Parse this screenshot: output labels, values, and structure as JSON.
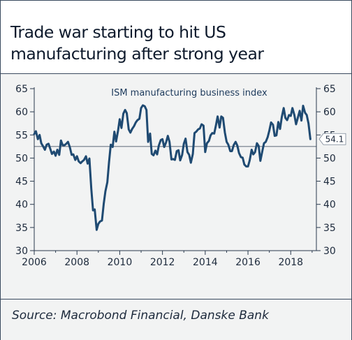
{
  "title": "Trade war starting to hit US manufacturing after strong year",
  "source": "Source: Macrobond Financial, Danske Bank",
  "colors": {
    "line": "#1f4a72",
    "text": "#1d2a3c",
    "background": "#f2f3f3",
    "frame": "#3a4a5e"
  },
  "chart_data": {
    "type": "line",
    "title": "",
    "xlabel": "",
    "ylabel": "",
    "xlim": [
      2006,
      2019.2
    ],
    "ylim": [
      30,
      65
    ],
    "x_ticks": [
      "2006",
      "2008",
      "2010",
      "2012",
      "2014",
      "2016",
      "2018"
    ],
    "y_ticks": [
      "65",
      "60",
      "55",
      "50",
      "45",
      "40",
      "35",
      "30"
    ],
    "grid": false,
    "reference_line": 52.5,
    "last_value_label": "54.1",
    "series": [
      {
        "name": "ISM manufacturing business index",
        "x": [
          2006.0,
          2006.08,
          2006.17,
          2006.25,
          2006.33,
          2006.42,
          2006.5,
          2006.58,
          2006.67,
          2006.75,
          2006.83,
          2006.92,
          2007.0,
          2007.08,
          2007.17,
          2007.25,
          2007.33,
          2007.42,
          2007.5,
          2007.58,
          2007.67,
          2007.75,
          2007.83,
          2007.92,
          2008.0,
          2008.08,
          2008.17,
          2008.25,
          2008.33,
          2008.42,
          2008.5,
          2008.58,
          2008.67,
          2008.75,
          2008.83,
          2008.92,
          2009.0,
          2009.08,
          2009.17,
          2009.25,
          2009.33,
          2009.42,
          2009.5,
          2009.58,
          2009.67,
          2009.75,
          2009.83,
          2009.92,
          2010.0,
          2010.08,
          2010.17,
          2010.25,
          2010.33,
          2010.42,
          2010.5,
          2010.58,
          2010.67,
          2010.75,
          2010.83,
          2010.92,
          2011.0,
          2011.08,
          2011.17,
          2011.25,
          2011.33,
          2011.42,
          2011.5,
          2011.58,
          2011.67,
          2011.75,
          2011.83,
          2011.92,
          2012.0,
          2012.08,
          2012.17,
          2012.25,
          2012.33,
          2012.42,
          2012.5,
          2012.58,
          2012.67,
          2012.75,
          2012.83,
          2012.92,
          2013.0,
          2013.08,
          2013.17,
          2013.25,
          2013.33,
          2013.42,
          2013.5,
          2013.58,
          2013.67,
          2013.75,
          2013.83,
          2013.92,
          2014.0,
          2014.08,
          2014.17,
          2014.25,
          2014.33,
          2014.42,
          2014.5,
          2014.58,
          2014.67,
          2014.75,
          2014.83,
          2014.92,
          2015.0,
          2015.08,
          2015.17,
          2015.25,
          2015.33,
          2015.42,
          2015.5,
          2015.58,
          2015.67,
          2015.75,
          2015.83,
          2015.92,
          2016.0,
          2016.08,
          2016.17,
          2016.25,
          2016.33,
          2016.42,
          2016.5,
          2016.58,
          2016.67,
          2016.75,
          2016.83,
          2016.92,
          2017.0,
          2017.08,
          2017.17,
          2017.25,
          2017.33,
          2017.42,
          2017.5,
          2017.58,
          2017.67,
          2017.75,
          2017.83,
          2017.92,
          2018.0,
          2018.08,
          2018.17,
          2018.25,
          2018.33,
          2018.42,
          2018.5,
          2018.58,
          2018.67,
          2018.75,
          2018.83,
          2018.92
        ],
        "y": [
          55.2,
          55.8,
          54.1,
          55.0,
          53.2,
          52.5,
          51.8,
          52.9,
          53.1,
          52.0,
          50.9,
          51.4,
          50.5,
          51.8,
          50.7,
          53.8,
          52.8,
          52.8,
          53.1,
          53.5,
          52.3,
          50.7,
          50.8,
          49.6,
          50.4,
          49.3,
          48.9,
          49.3,
          49.6,
          50.4,
          48.8,
          49.9,
          43.4,
          38.7,
          38.9,
          34.5,
          35.8,
          36.3,
          36.5,
          40.1,
          42.8,
          44.8,
          49.1,
          52.9,
          52.4,
          55.7,
          53.6,
          55.9,
          58.4,
          56.5,
          59.6,
          60.4,
          59.7,
          56.2,
          55.5,
          56.3,
          56.9,
          57.7,
          58.2,
          58.5,
          60.8,
          61.4,
          61.2,
          60.4,
          53.5,
          55.3,
          50.9,
          50.6,
          51.6,
          50.8,
          52.7,
          53.9,
          54.1,
          52.4,
          53.4,
          54.8,
          53.5,
          49.7,
          49.8,
          49.6,
          51.5,
          51.7,
          49.5,
          50.7,
          53.1,
          54.2,
          51.3,
          50.7,
          49.0,
          50.9,
          55.4,
          55.7,
          56.2,
          56.4,
          57.3,
          57.0,
          51.3,
          53.2,
          53.7,
          54.9,
          55.4,
          55.3,
          57.1,
          59.0,
          56.6,
          59.0,
          58.7,
          55.5,
          53.5,
          52.9,
          51.5,
          51.5,
          52.8,
          53.5,
          52.7,
          51.1,
          50.2,
          50.1,
          48.6,
          48.2,
          48.2,
          49.5,
          51.8,
          50.8,
          51.3,
          53.2,
          52.6,
          49.4,
          51.5,
          53.2,
          53.5,
          54.5,
          56.0,
          57.7,
          57.2,
          54.8,
          54.9,
          57.8,
          56.3,
          58.8,
          60.8,
          58.7,
          58.2,
          59.3,
          59.1,
          60.8,
          59.3,
          57.3,
          58.7,
          60.2,
          58.1,
          61.3,
          59.8,
          59.3,
          57.5,
          54.1
        ]
      }
    ]
  }
}
